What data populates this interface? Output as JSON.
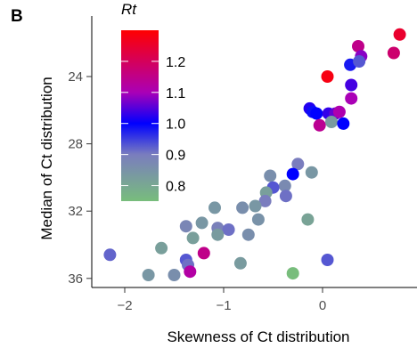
{
  "panel_label": "B",
  "chart_data": {
    "type": "scatter",
    "xlabel": "Skewness of Ct distribution",
    "ylabel": "Median of Ct distribution",
    "xlim": [
      -2.3,
      0.85
    ],
    "ylim": [
      36.5,
      20.3
    ],
    "y_reversed": true,
    "x_ticks": [
      -2,
      -1,
      0
    ],
    "x_tick_labels": [
      "−2",
      "−1",
      "0"
    ],
    "y_ticks": [
      24,
      28,
      32,
      36
    ],
    "y_tick_labels": [
      "24",
      "28",
      "32",
      "36"
    ],
    "grid": false,
    "legend": {
      "title": "Rt",
      "placement": "top-left inside plot",
      "min": 0.75,
      "max": 1.3,
      "breaks": [
        0.8,
        0.9,
        1.0,
        1.1,
        1.2
      ],
      "break_labels": [
        "0.8",
        "0.9",
        "1.0",
        "1.1",
        "1.2"
      ],
      "colorscale": [
        {
          "v": 0.75,
          "color": "#78bd7c"
        },
        {
          "v": 0.9,
          "color": "#7a7dbe"
        },
        {
          "v": 1.0,
          "color": "#0000ff"
        },
        {
          "v": 1.1,
          "color": "#aa00b6"
        },
        {
          "v": 1.3,
          "color": "#ff0000"
        }
      ]
    },
    "points": [
      {
        "x": 0.78,
        "y": 21.5,
        "rt": 1.25
      },
      {
        "x": 0.72,
        "y": 22.6,
        "rt": 1.18
      },
      {
        "x": 0.36,
        "y": 22.2,
        "rt": 1.15
      },
      {
        "x": 0.39,
        "y": 22.8,
        "rt": 1.08
      },
      {
        "x": 0.28,
        "y": 23.3,
        "rt": 0.98
      },
      {
        "x": 0.37,
        "y": 23.1,
        "rt": 0.93
      },
      {
        "x": 0.05,
        "y": 24.0,
        "rt": 1.28
      },
      {
        "x": 0.29,
        "y": 24.5,
        "rt": 1.04
      },
      {
        "x": 0.29,
        "y": 25.3,
        "rt": 1.1
      },
      {
        "x": -0.13,
        "y": 25.9,
        "rt": 1.02
      },
      {
        "x": -0.1,
        "y": 26.1,
        "rt": 0.99
      },
      {
        "x": -0.06,
        "y": 26.2,
        "rt": 1.0
      },
      {
        "x": 0.06,
        "y": 26.2,
        "rt": 1.03
      },
      {
        "x": 0.13,
        "y": 26.2,
        "rt": 1.06
      },
      {
        "x": 0.17,
        "y": 26.1,
        "rt": 1.11
      },
      {
        "x": -0.03,
        "y": 26.9,
        "rt": 1.14
      },
      {
        "x": 0.09,
        "y": 26.7,
        "rt": 0.83
      },
      {
        "x": 0.21,
        "y": 26.8,
        "rt": 1.0
      },
      {
        "x": -0.25,
        "y": 29.2,
        "rt": 0.9
      },
      {
        "x": -0.11,
        "y": 29.7,
        "rt": 0.84
      },
      {
        "x": -0.3,
        "y": 29.8,
        "rt": 1.0
      },
      {
        "x": -0.53,
        "y": 29.9,
        "rt": 0.86
      },
      {
        "x": -0.38,
        "y": 30.5,
        "rt": 0.87
      },
      {
        "x": -0.5,
        "y": 30.6,
        "rt": 0.93
      },
      {
        "x": -0.57,
        "y": 30.9,
        "rt": 0.82
      },
      {
        "x": -0.37,
        "y": 31.1,
        "rt": 0.91
      },
      {
        "x": -0.58,
        "y": 31.4,
        "rt": 0.9
      },
      {
        "x": -0.68,
        "y": 31.7,
        "rt": 0.84
      },
      {
        "x": -1.09,
        "y": 31.8,
        "rt": 0.84
      },
      {
        "x": -0.81,
        "y": 31.8,
        "rt": 0.86
      },
      {
        "x": -1.22,
        "y": 32.7,
        "rt": 0.84
      },
      {
        "x": -0.65,
        "y": 32.5,
        "rt": 0.85
      },
      {
        "x": -0.15,
        "y": 32.5,
        "rt": 0.81
      },
      {
        "x": -1.38,
        "y": 32.9,
        "rt": 0.88
      },
      {
        "x": -1.06,
        "y": 33.0,
        "rt": 0.89
      },
      {
        "x": -0.95,
        "y": 33.1,
        "rt": 0.91
      },
      {
        "x": -1.06,
        "y": 33.4,
        "rt": 0.83
      },
      {
        "x": -0.75,
        "y": 33.4,
        "rt": 0.86
      },
      {
        "x": -1.31,
        "y": 33.6,
        "rt": 0.82
      },
      {
        "x": -1.63,
        "y": 34.2,
        "rt": 0.82
      },
      {
        "x": -1.2,
        "y": 34.5,
        "rt": 1.15
      },
      {
        "x": -2.15,
        "y": 34.6,
        "rt": 0.92
      },
      {
        "x": -1.38,
        "y": 34.9,
        "rt": 0.93
      },
      {
        "x": -1.36,
        "y": 35.2,
        "rt": 0.91
      },
      {
        "x": -0.83,
        "y": 35.1,
        "rt": 0.83
      },
      {
        "x": 0.05,
        "y": 34.9,
        "rt": 0.93
      },
      {
        "x": -1.76,
        "y": 35.8,
        "rt": 0.84
      },
      {
        "x": -1.5,
        "y": 35.8,
        "rt": 0.86
      },
      {
        "x": -1.34,
        "y": 35.6,
        "rt": 1.12
      },
      {
        "x": -0.3,
        "y": 35.7,
        "rt": 0.75
      }
    ]
  }
}
